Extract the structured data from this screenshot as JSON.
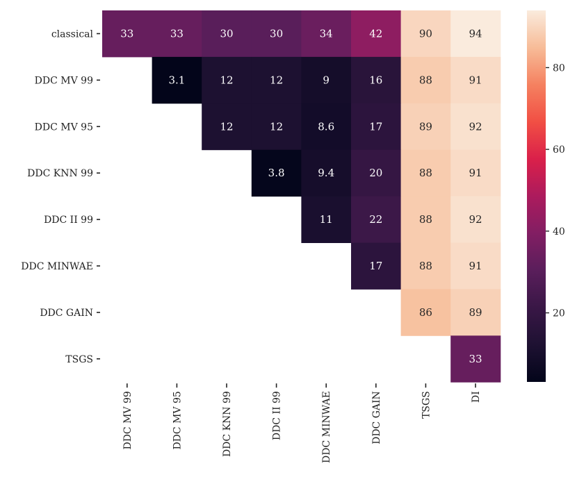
{
  "chart_data": {
    "type": "heatmap",
    "title": "",
    "xlabel": "",
    "ylabel": "",
    "row_labels": [
      "classical",
      "DDC MV 99",
      "DDC MV 95",
      "DDC KNN 99",
      "DDC II 99",
      "DDC MINWAE",
      "DDC GAIN",
      "TSGS"
    ],
    "col_labels": [
      "DDC MV 99",
      "DDC MV 95",
      "DDC KNN 99",
      "DDC II 99",
      "DDC MINWAE",
      "DDC GAIN",
      "TSGS",
      "DI"
    ],
    "values": [
      [
        33,
        33,
        30,
        30,
        34,
        42,
        90,
        94
      ],
      [
        null,
        3.1,
        12,
        12,
        9,
        16,
        88,
        91
      ],
      [
        null,
        null,
        12,
        12,
        8.6,
        17,
        89,
        92
      ],
      [
        null,
        null,
        null,
        3.8,
        9.4,
        20,
        88,
        91
      ],
      [
        null,
        null,
        null,
        null,
        11,
        22,
        88,
        92
      ],
      [
        null,
        null,
        null,
        null,
        null,
        17,
        88,
        91
      ],
      [
        null,
        null,
        null,
        null,
        null,
        null,
        86,
        89
      ],
      [
        null,
        null,
        null,
        null,
        null,
        null,
        null,
        33
      ]
    ],
    "colorbar": {
      "range": [
        3.1,
        94
      ],
      "ticks": [
        20,
        40,
        60,
        80
      ],
      "tick_labels": [
        "20",
        "40",
        "60",
        "80"
      ],
      "colormap": "rocket"
    }
  }
}
